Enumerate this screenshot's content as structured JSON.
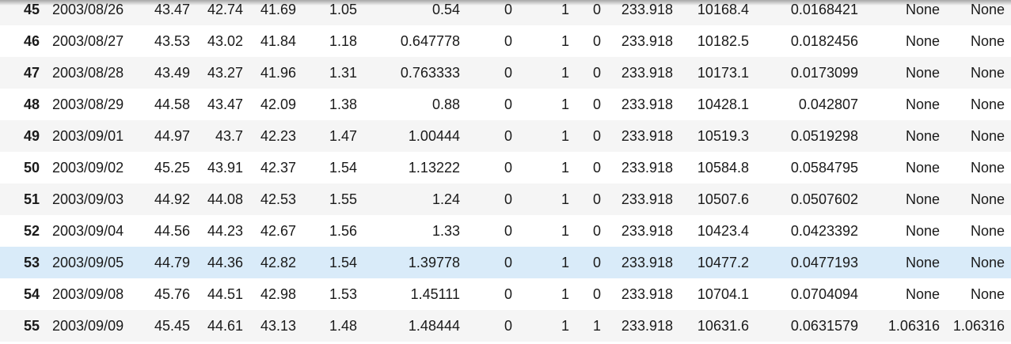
{
  "table": {
    "rows": [
      {
        "index": "45",
        "cells": [
          "2003/08/26",
          "43.47",
          "42.74",
          "41.69",
          "1.05",
          "0.54",
          "0",
          "1",
          "0",
          "233.918",
          "10168.4",
          "0.0168421",
          "None",
          "None"
        ]
      },
      {
        "index": "46",
        "cells": [
          "2003/08/27",
          "43.53",
          "43.02",
          "41.84",
          "1.18",
          "0.647778",
          "0",
          "1",
          "0",
          "233.918",
          "10182.5",
          "0.0182456",
          "None",
          "None"
        ]
      },
      {
        "index": "47",
        "cells": [
          "2003/08/28",
          "43.49",
          "43.27",
          "41.96",
          "1.31",
          "0.763333",
          "0",
          "1",
          "0",
          "233.918",
          "10173.1",
          "0.0173099",
          "None",
          "None"
        ]
      },
      {
        "index": "48",
        "cells": [
          "2003/08/29",
          "44.58",
          "43.47",
          "42.09",
          "1.38",
          "0.88",
          "0",
          "1",
          "0",
          "233.918",
          "10428.1",
          "0.042807",
          "None",
          "None"
        ]
      },
      {
        "index": "49",
        "cells": [
          "2003/09/01",
          "44.97",
          "43.7",
          "42.23",
          "1.47",
          "1.00444",
          "0",
          "1",
          "0",
          "233.918",
          "10519.3",
          "0.0519298",
          "None",
          "None"
        ]
      },
      {
        "index": "50",
        "cells": [
          "2003/09/02",
          "45.25",
          "43.91",
          "42.37",
          "1.54",
          "1.13222",
          "0",
          "1",
          "0",
          "233.918",
          "10584.8",
          "0.0584795",
          "None",
          "None"
        ]
      },
      {
        "index": "51",
        "cells": [
          "2003/09/03",
          "44.92",
          "44.08",
          "42.53",
          "1.55",
          "1.24",
          "0",
          "1",
          "0",
          "233.918",
          "10507.6",
          "0.0507602",
          "None",
          "None"
        ]
      },
      {
        "index": "52",
        "cells": [
          "2003/09/04",
          "44.56",
          "44.23",
          "42.67",
          "1.56",
          "1.33",
          "0",
          "1",
          "0",
          "233.918",
          "10423.4",
          "0.0423392",
          "None",
          "None"
        ]
      },
      {
        "index": "53",
        "cells": [
          "2003/09/05",
          "44.79",
          "44.36",
          "42.82",
          "1.54",
          "1.39778",
          "0",
          "1",
          "0",
          "233.918",
          "10477.2",
          "0.0477193",
          "None",
          "None"
        ]
      },
      {
        "index": "54",
        "cells": [
          "2003/09/08",
          "45.76",
          "44.51",
          "42.98",
          "1.53",
          "1.45111",
          "0",
          "1",
          "0",
          "233.918",
          "10704.1",
          "0.0704094",
          "None",
          "None"
        ]
      },
      {
        "index": "55",
        "cells": [
          "2003/09/09",
          "45.45",
          "44.61",
          "43.13",
          "1.48",
          "1.48444",
          "0",
          "1",
          "1",
          "233.918",
          "10631.6",
          "0.0631579",
          "1.06316",
          "1.06316"
        ]
      }
    ],
    "hovered_row": "53"
  },
  "colors": {
    "row_odd": "#f5f5f5",
    "row_even": "#ffffff",
    "row_hover": "#d9ebf9",
    "text": "#1a1a1a"
  }
}
